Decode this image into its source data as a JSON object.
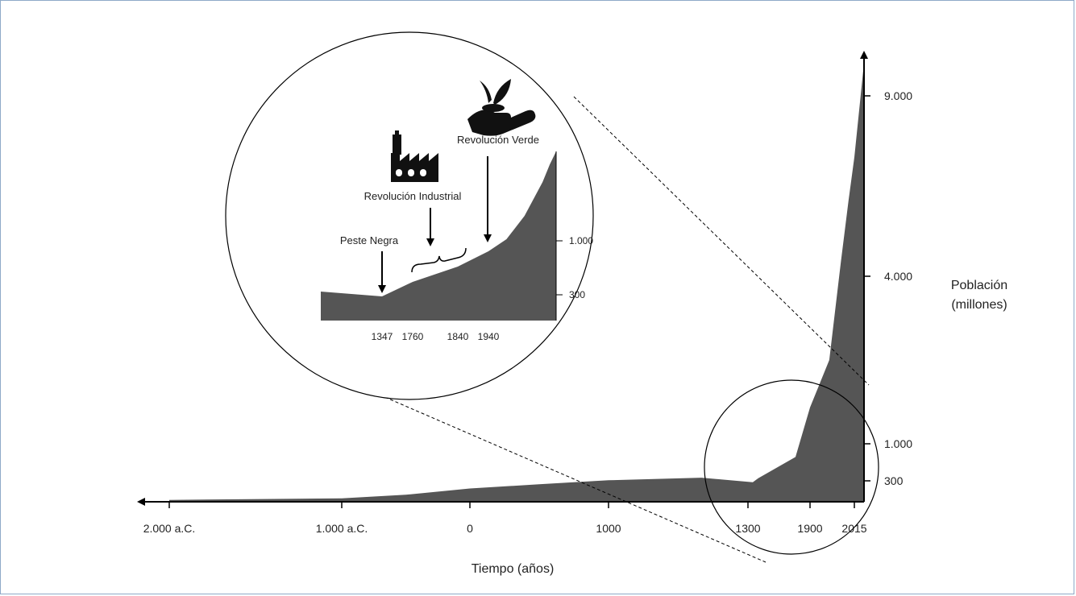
{
  "chart_data": {
    "type": "area",
    "xlabel": "Tiempo (años)",
    "ylabel": "Población (millones)",
    "x_ticks": [
      "2.000 a.C.",
      "1.000 a.C.",
      "0",
      "1000",
      "1300",
      "1900",
      "2015"
    ],
    "y_ticks": [
      "300",
      "1.000",
      "4.000",
      "9.000"
    ],
    "series": [
      {
        "x": [
          -2000,
          -1000,
          -500,
          0,
          500,
          1000,
          1200,
          1347,
          1400,
          1760,
          1900,
          1950,
          1980,
          2000,
          2010,
          2015
        ],
        "y": [
          27,
          50,
          100,
          190,
          250,
          310,
          360,
          280,
          350,
          750,
          1650,
          2500,
          4400,
          6100,
          6900,
          7300
        ]
      }
    ],
    "inset": {
      "x_ticks": [
        "1347",
        "1760",
        "1840",
        "1940"
      ],
      "y_ticks": [
        "300",
        "1.000"
      ],
      "annotations": [
        {
          "label": "Peste Negra",
          "year": 1347
        },
        {
          "label": "Revolución Industrial",
          "span": [
            "1760",
            "1840"
          ]
        },
        {
          "label": "Revolución Verde",
          "year": 1940
        }
      ],
      "icons": [
        "factory-icon",
        "plant-in-hand-icon"
      ]
    }
  }
}
